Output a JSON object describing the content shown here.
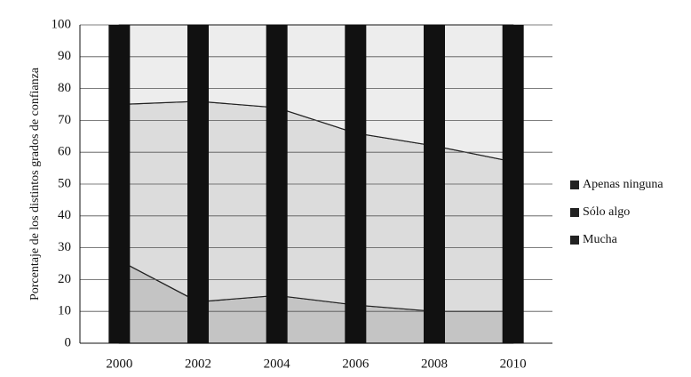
{
  "chart_data": {
    "type": "stacked-area",
    "y_label": "Porcentaje de los distintos grados de confianza",
    "x": [
      2000,
      2002,
      2004,
      2006,
      2008,
      2010
    ],
    "xlim": [
      1999,
      2011
    ],
    "xticks": [
      2000,
      2002,
      2004,
      2006,
      2008,
      2010
    ],
    "ylim": [
      0,
      100
    ],
    "yticks": [
      0,
      10,
      20,
      30,
      40,
      50,
      60,
      70,
      80,
      90,
      100
    ],
    "grid": true,
    "legend": "right",
    "series": [
      {
        "name": "Mucha",
        "color": "#c4c4c4",
        "values": [
          26,
          13,
          15,
          12,
          10,
          10
        ]
      },
      {
        "name": "Sólo algo",
        "color": "#dcdcdc",
        "values": [
          49,
          63,
          59,
          54,
          52,
          47
        ]
      },
      {
        "name": "Apenas ninguna",
        "color": "#ededed",
        "values": [
          25,
          24,
          26,
          34,
          38,
          43
        ]
      }
    ]
  }
}
